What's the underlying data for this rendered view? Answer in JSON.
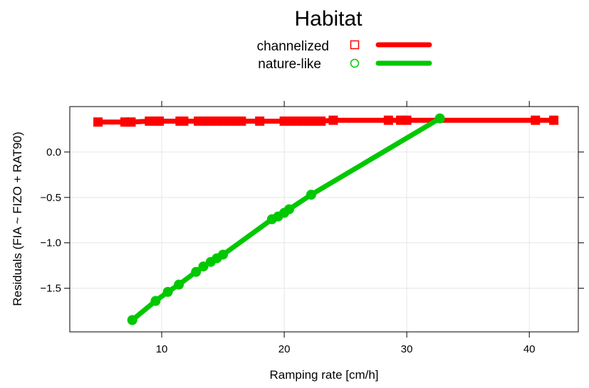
{
  "chart_data": {
    "type": "line",
    "legend": {
      "title": "Habitat",
      "placement": "top-center"
    },
    "xlabel": "Ramping rate [cm/h]",
    "ylabel": "Residuals (FIA ~ FIZO + RAT90)",
    "xlim": [
      2.5,
      44
    ],
    "ylim": [
      -1.98,
      0.5
    ],
    "xticks": [
      10,
      20,
      30,
      40
    ],
    "xtick_labels": [
      "10",
      "20",
      "30",
      "40"
    ],
    "yticks": [
      -1.5,
      -1.0,
      -0.5,
      0.0
    ],
    "ytick_labels": [
      "-1.5",
      "-1.0",
      "-0.5",
      "0.0"
    ],
    "grid": true,
    "series": [
      {
        "name": "channelized",
        "color": "#ff0000",
        "marker": "square",
        "x": [
          4.8,
          7.0,
          7.5,
          9.0,
          9.5,
          9.8,
          11.5,
          11.8,
          13.0,
          13.5,
          14.0,
          14.5,
          15.0,
          15.5,
          16.0,
          16.5,
          18.0,
          20.0,
          20.5,
          21.0,
          21.5,
          22.0,
          22.5,
          23.0,
          24.0,
          28.5,
          29.5,
          30.0,
          40.5,
          42.0
        ],
        "y": [
          0.33,
          0.33,
          0.33,
          0.34,
          0.34,
          0.34,
          0.34,
          0.34,
          0.34,
          0.34,
          0.34,
          0.34,
          0.34,
          0.34,
          0.34,
          0.34,
          0.34,
          0.34,
          0.34,
          0.34,
          0.34,
          0.34,
          0.34,
          0.34,
          0.35,
          0.35,
          0.35,
          0.35,
          0.35,
          0.35
        ]
      },
      {
        "name": "nature-like",
        "color": "#00c800",
        "marker": "circle",
        "x": [
          7.6,
          9.5,
          10.5,
          11.4,
          12.8,
          13.4,
          14.0,
          14.5,
          15.0,
          19.0,
          19.5,
          20.0,
          20.4,
          22.2,
          32.7
        ],
        "y": [
          -1.85,
          -1.64,
          -1.54,
          -1.46,
          -1.32,
          -1.26,
          -1.21,
          -1.17,
          -1.13,
          -0.74,
          -0.71,
          -0.67,
          -0.63,
          -0.47,
          0.37
        ]
      }
    ]
  }
}
